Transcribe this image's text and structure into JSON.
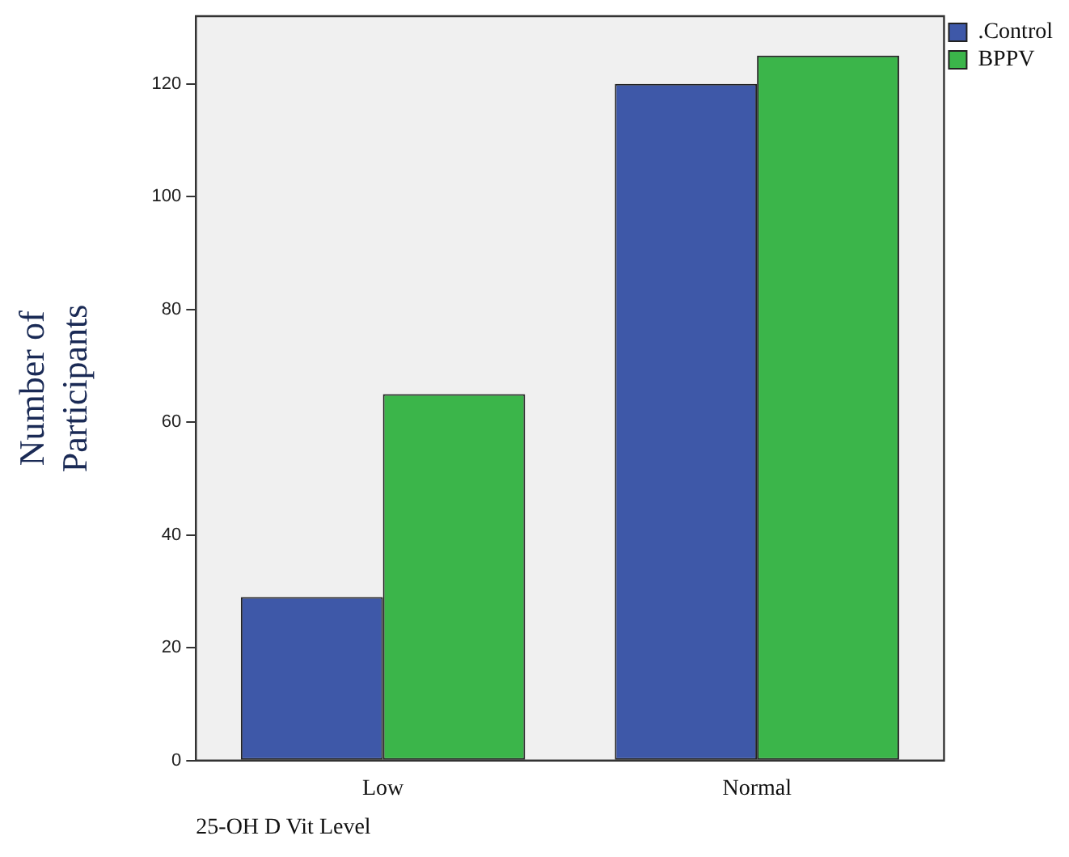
{
  "chart_data": {
    "type": "bar",
    "xlabel": "25-OH D Vit Level",
    "ylabel": "Number of Participants",
    "categories": [
      "Low",
      "Normal"
    ],
    "series": [
      {
        "name": ".Control",
        "color": "#3e58a8",
        "values": [
          29,
          120
        ]
      },
      {
        "name": "BPPV",
        "color": "#3bb54a",
        "values": [
          65,
          125
        ]
      }
    ],
    "ylim": [
      0,
      132
    ],
    "yticks": [
      0,
      20,
      40,
      60,
      80,
      100,
      120
    ],
    "grid": false,
    "legend": "right"
  }
}
